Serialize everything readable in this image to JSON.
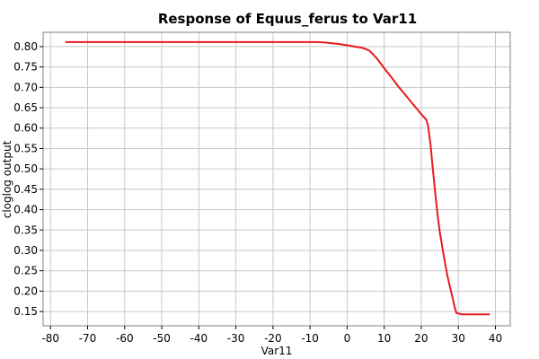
{
  "chart_data": {
    "type": "line",
    "title": "Response of Equus_ferus to Var11",
    "xlabel": "Var11",
    "ylabel": "cloglog output",
    "xlim": [
      -82,
      44
    ],
    "ylim": [
      0.115,
      0.835
    ],
    "xticks": [
      -80,
      -70,
      -60,
      -50,
      -40,
      -30,
      -20,
      -10,
      0,
      10,
      20,
      30,
      40
    ],
    "yticks": [
      0.15,
      0.2,
      0.25,
      0.3,
      0.35,
      0.4,
      0.45,
      0.5,
      0.55,
      0.6,
      0.65,
      0.7,
      0.75,
      0.8
    ],
    "grid": true,
    "series": [
      {
        "name": "",
        "color": "#e8191e",
        "x": [
          -76,
          -60,
          -40,
          -20,
          -8,
          -6,
          -4,
          -2,
          0,
          2,
          4,
          5,
          6,
          7,
          8,
          9,
          10,
          12,
          14,
          16,
          18,
          20,
          21.3,
          21.8,
          22.5,
          23,
          23.5,
          24,
          24.5,
          25,
          26,
          27,
          28,
          28.5,
          29,
          29.5,
          31,
          35,
          38.5
        ],
        "y": [
          0.811,
          0.811,
          0.811,
          0.811,
          0.811,
          0.81,
          0.808,
          0.806,
          0.803,
          0.8,
          0.797,
          0.794,
          0.79,
          0.781,
          0.771,
          0.759,
          0.747,
          0.724,
          0.7,
          0.678,
          0.656,
          0.634,
          0.621,
          0.608,
          0.56,
          0.51,
          0.465,
          0.42,
          0.38,
          0.345,
          0.29,
          0.24,
          0.2,
          0.182,
          0.16,
          0.146,
          0.143,
          0.143,
          0.143
        ]
      }
    ]
  }
}
